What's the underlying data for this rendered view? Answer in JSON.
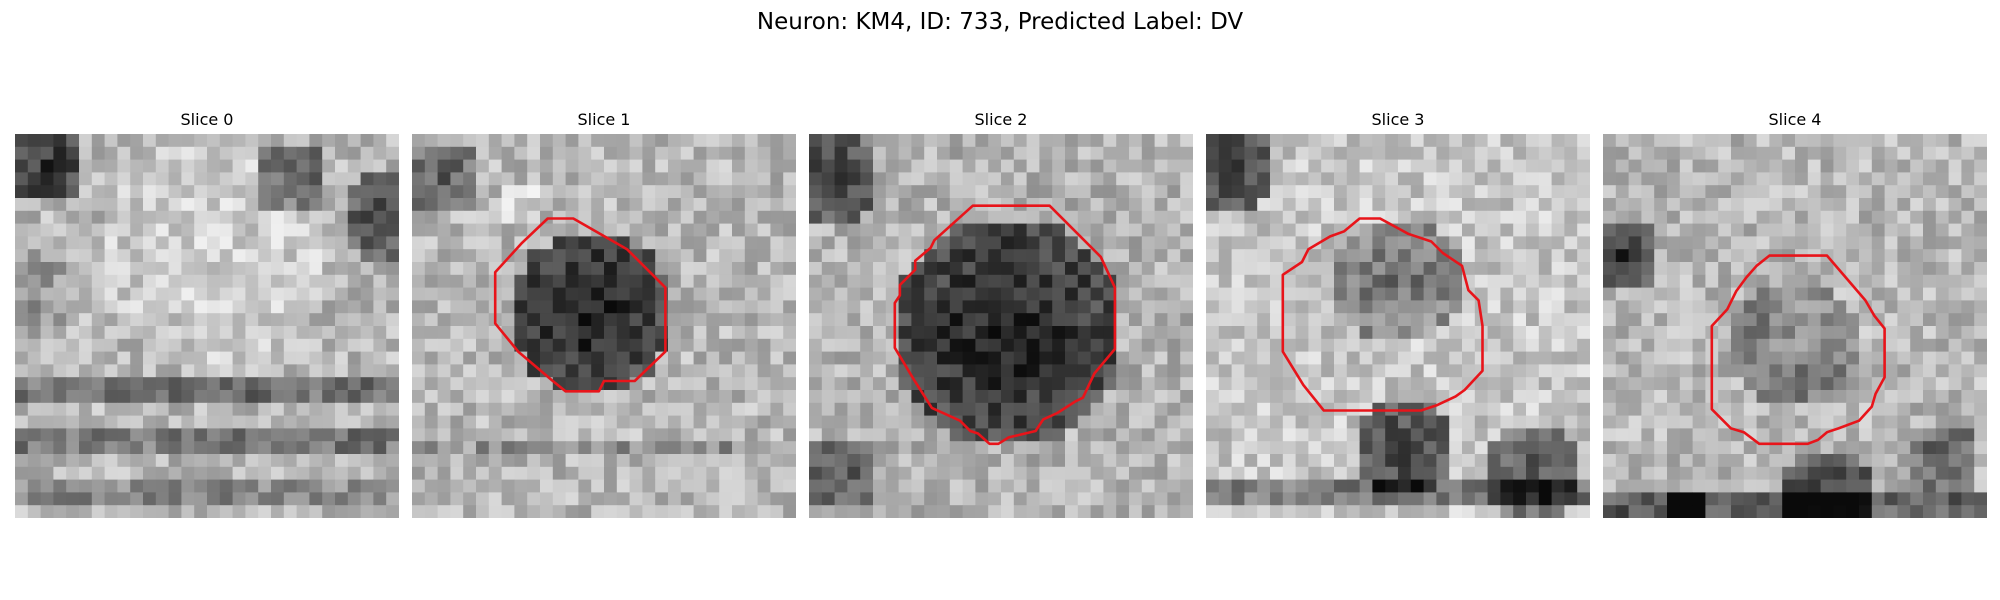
{
  "figure": {
    "title": "Neuron: KM4, ID: 733, Predicted Label: DV"
  },
  "panels": [
    {
      "title": "Slice 0",
      "outline": false
    },
    {
      "title": "Slice 1",
      "outline": true
    },
    {
      "title": "Slice 2",
      "outline": true
    },
    {
      "title": "Slice 3",
      "outline": true
    },
    {
      "title": "Slice 4",
      "outline": true
    }
  ],
  "colors": {
    "outline": "#e8141a",
    "background": "#ffffff"
  }
}
